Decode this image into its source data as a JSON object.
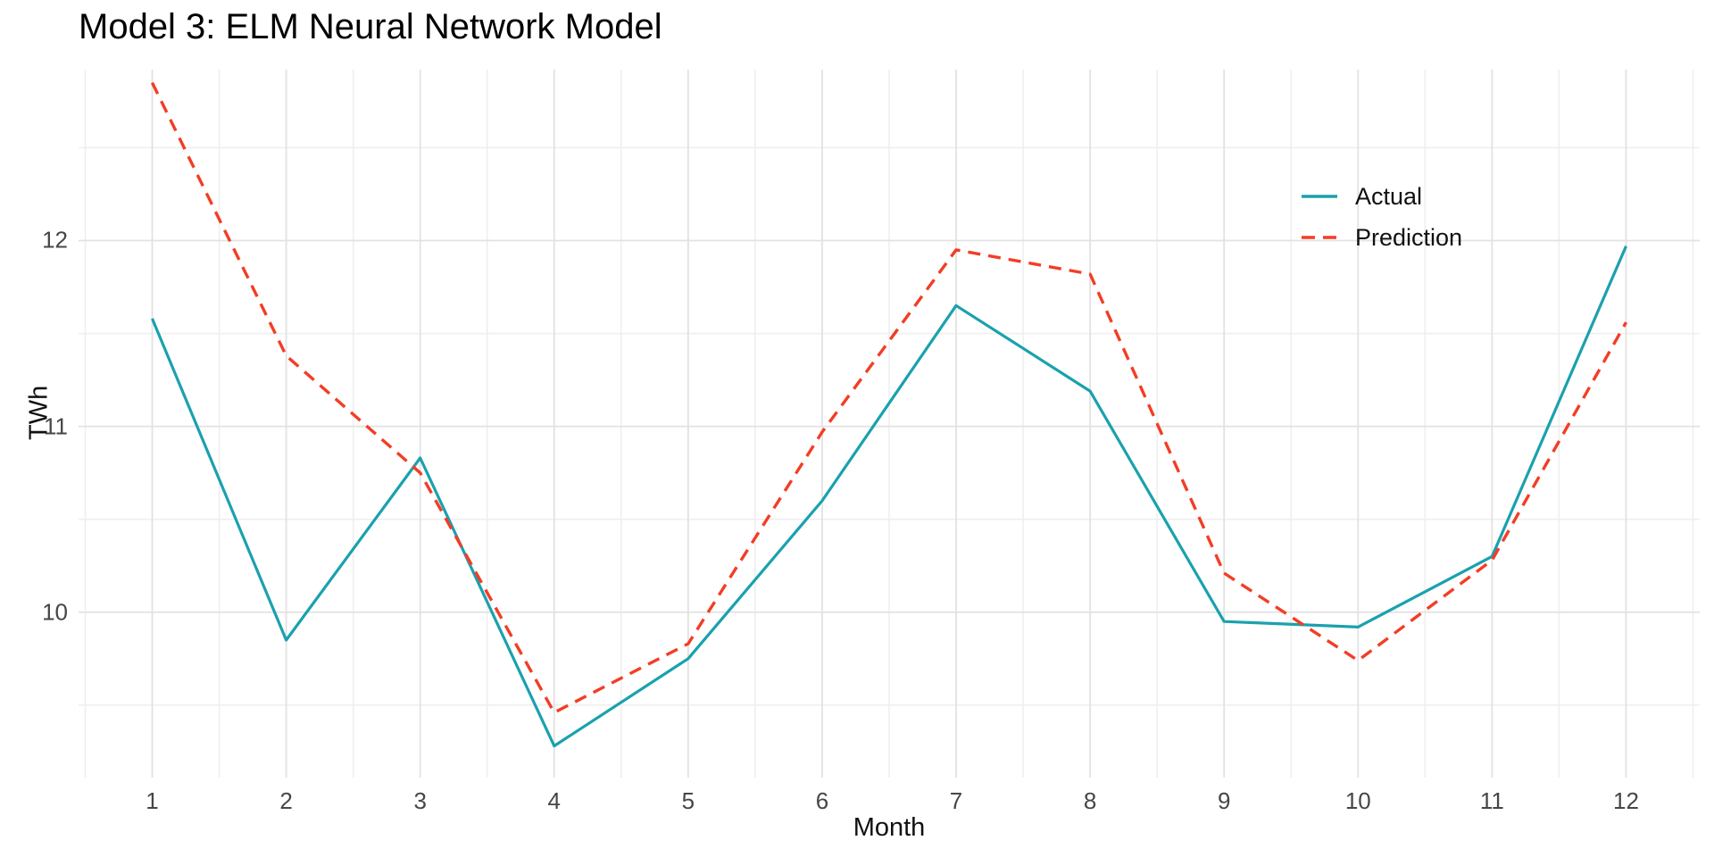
{
  "chart_data": {
    "type": "line",
    "title": "Model 3: ELM Neural Network Model",
    "xlabel": "Month",
    "ylabel": "TWh",
    "x": [
      1,
      2,
      3,
      4,
      5,
      6,
      7,
      8,
      9,
      10,
      11,
      12
    ],
    "series": [
      {
        "name": "Actual",
        "color": "#1aa1ae",
        "style": "solid",
        "values": [
          11.58,
          9.85,
          10.83,
          9.28,
          9.75,
          10.6,
          11.65,
          11.19,
          9.95,
          9.92,
          10.3,
          11.97
        ]
      },
      {
        "name": "Prediction",
        "color": "#f33d25",
        "style": "dashed",
        "values": [
          12.85,
          11.38,
          10.75,
          9.46,
          9.83,
          10.97,
          11.95,
          11.82,
          10.21,
          9.74,
          10.28,
          11.56
        ]
      }
    ],
    "x_ticks": [
      1,
      2,
      3,
      4,
      5,
      6,
      7,
      8,
      9,
      10,
      11,
      12
    ],
    "y_ticks": [
      10,
      11,
      12
    ],
    "x_minor": [
      0.5,
      1.5,
      2.5,
      3.5,
      4.5,
      5.5,
      6.5,
      7.5,
      8.5,
      9.5,
      10.5,
      11.5,
      12.5
    ],
    "y_minor": [
      9.5,
      10.5,
      11.5,
      12.5
    ],
    "xlim": [
      0.45,
      12.55
    ],
    "ylim": [
      9.11,
      12.92
    ],
    "grid": true,
    "legend_position": "inside-top-right",
    "background": "#ffffff"
  }
}
